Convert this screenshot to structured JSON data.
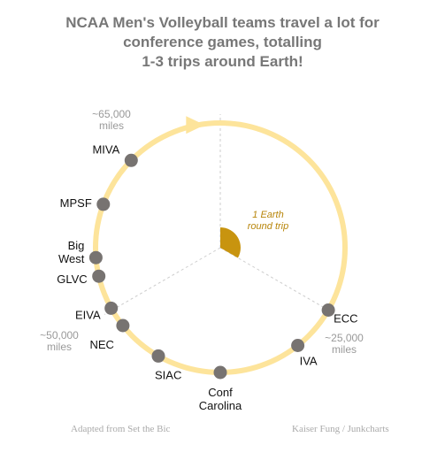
{
  "title_lines": [
    "NCAA Men's Volleyball teams travel a lot for",
    "conference games, totalling",
    "1-3 trips around Earth!"
  ],
  "footer_left": "Adapted from Set the Bic",
  "footer_right": "Kaiser Fung / Junkcharts",
  "chart_data": {
    "type": "radial-dot",
    "unit": "miles",
    "full_circle": 75000,
    "earth_trip_label_lines": [
      "1 Earth",
      "round trip"
    ],
    "earth_trip_miles": 25000,
    "reference_marks": [
      {
        "miles": 25000,
        "lines": [
          "~25,000",
          "miles"
        ]
      },
      {
        "miles": 50000,
        "lines": [
          "~50,000",
          "miles"
        ]
      },
      {
        "miles": 65000,
        "lines": [
          "~65,000",
          "miles"
        ]
      }
    ],
    "conferences": [
      {
        "name_lines": [
          "ECC"
        ],
        "miles": 25000
      },
      {
        "name_lines": [
          "IVA"
        ],
        "miles": 29500
      },
      {
        "name_lines": [
          "Conf",
          "Carolina"
        ],
        "miles": 37500
      },
      {
        "name_lines": [
          "SIAC"
        ],
        "miles": 43700
      },
      {
        "name_lines": [
          "NEC"
        ],
        "miles": 48200
      },
      {
        "name_lines": [
          "EIVA"
        ],
        "miles": 50200
      },
      {
        "name_lines": [
          "GLVC"
        ],
        "miles": 53500
      },
      {
        "name_lines": [
          "Big",
          "West"
        ],
        "miles": 55300
      },
      {
        "name_lines": [
          "MPSF"
        ],
        "miles": 60500
      },
      {
        "name_lines": [
          "MIVA"
        ],
        "miles": 65500
      }
    ],
    "colors": {
      "ring": "#fde49b",
      "dot": "#777371",
      "wedge": "#c8940f",
      "guide": "#cccccc"
    }
  }
}
